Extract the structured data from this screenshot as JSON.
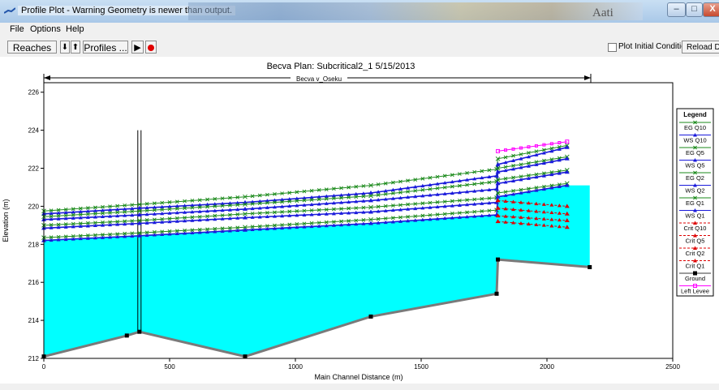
{
  "window": {
    "title": "Profile Plot - Warning Geometry is newer than output.",
    "bg_text": "Aati",
    "minimize": "–",
    "maximize": "□",
    "close": "X"
  },
  "menu": {
    "file": "File",
    "options": "Options",
    "help": "Help"
  },
  "toolbar": {
    "reaches": "Reaches ...",
    "down_arrow": "⬇",
    "up_arrow": "⬆",
    "profiles": "Profiles ...",
    "play": "▶",
    "plot_initial_conditions": "Plot Initial Conditions",
    "reload": "Reload Data"
  },
  "chart_data": {
    "type": "line",
    "title": "Becva      Plan: Subcritical2_1    5/15/2013",
    "reach_label": "Becva v_Oseku",
    "xlabel": "Main Channel Distance (m)",
    "ylabel": "Elevation (m)",
    "xlim": [
      0,
      2500
    ],
    "ylim": [
      212,
      226.5
    ],
    "x_ticks": [
      "0",
      "500",
      "1000",
      "1500",
      "2000",
      "2500"
    ],
    "y_ticks": [
      "212",
      "214",
      "216",
      "218",
      "220",
      "222",
      "224",
      "226"
    ],
    "legend_title": "Legend",
    "colors": {
      "water": "#00ffff",
      "eg": "#1b8a1b",
      "ws": "#1a1adb",
      "crit": "#dd0000",
      "ground": "#000000",
      "levee": "#ff00ff"
    },
    "series": [
      {
        "name": "EG  Q10",
        "x": [
          0,
          380,
          800,
          1300,
          1800,
          1805,
          2080
        ],
        "values": [
          219.75,
          220.1,
          220.5,
          221.1,
          221.95,
          222.5,
          223.2
        ]
      },
      {
        "name": "WS  Q10",
        "x": [
          0,
          380,
          800,
          1300,
          1800,
          1805,
          2080
        ],
        "values": [
          219.6,
          219.9,
          220.2,
          220.7,
          221.6,
          222.2,
          223.1
        ]
      },
      {
        "name": "EG  Q5",
        "x": [
          0,
          380,
          800,
          1300,
          1800,
          1805,
          2080
        ],
        "values": [
          219.45,
          219.75,
          220.1,
          220.55,
          221.3,
          222.0,
          222.6
        ]
      },
      {
        "name": "WS  Q5",
        "x": [
          0,
          380,
          800,
          1300,
          1800,
          1805,
          2080
        ],
        "values": [
          219.3,
          219.55,
          219.85,
          220.3,
          220.9,
          221.8,
          222.5
        ]
      },
      {
        "name": "EG  Q2",
        "x": [
          0,
          380,
          800,
          1300,
          1800,
          1805,
          2080
        ],
        "values": [
          219.0,
          219.25,
          219.6,
          219.95,
          220.45,
          221.4,
          221.9
        ]
      },
      {
        "name": "WS  Q2",
        "x": [
          0,
          380,
          800,
          1300,
          1800,
          1805,
          2080
        ],
        "values": [
          218.85,
          219.1,
          219.4,
          219.7,
          220.2,
          221.2,
          221.8
        ]
      },
      {
        "name": "EG  Q1",
        "x": [
          0,
          380,
          800,
          1300,
          1800,
          1805,
          2080
        ],
        "values": [
          218.35,
          218.6,
          218.9,
          219.3,
          219.8,
          220.7,
          221.2
        ]
      },
      {
        "name": "WS  Q1",
        "x": [
          0,
          380,
          800,
          1300,
          1800,
          1805,
          2080
        ],
        "values": [
          218.2,
          218.45,
          218.75,
          219.1,
          219.55,
          220.5,
          221.1
        ]
      },
      {
        "name": "Crit  Q10",
        "x": [
          1805,
          2080
        ],
        "values": [
          220.3,
          220.0
        ]
      },
      {
        "name": "Crit  Q5",
        "x": [
          1805,
          2080
        ],
        "values": [
          219.9,
          219.6
        ]
      },
      {
        "name": "Crit  Q2",
        "x": [
          1805,
          2080
        ],
        "values": [
          219.5,
          219.25
        ]
      },
      {
        "name": "Crit  Q1",
        "x": [
          1805,
          2080
        ],
        "values": [
          219.2,
          218.9
        ]
      },
      {
        "name": "Ground",
        "x": [
          0,
          330,
          380,
          800,
          1300,
          1800,
          1805,
          2170
        ],
        "values": [
          212.1,
          213.2,
          213.4,
          212.1,
          214.2,
          215.4,
          217.2,
          216.8
        ]
      },
      {
        "name": "Left Levee",
        "x": [
          1805,
          2080
        ],
        "values": [
          222.9,
          223.4
        ]
      }
    ]
  }
}
